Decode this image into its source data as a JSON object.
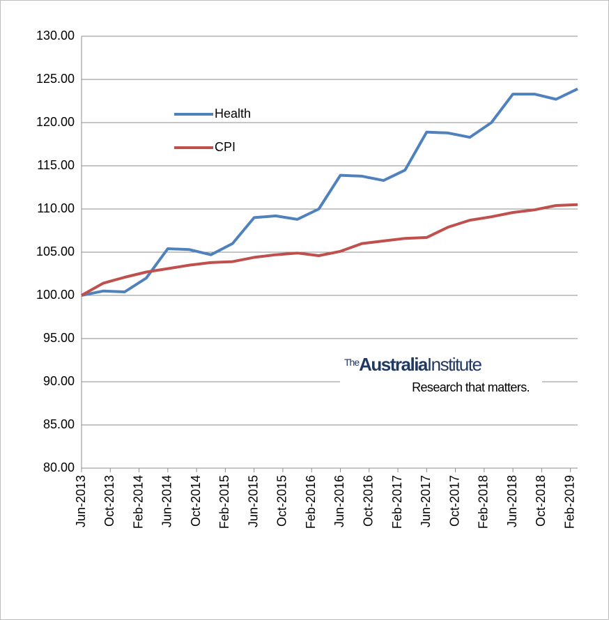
{
  "chart_data": {
    "type": "line",
    "x": [
      "2013-06",
      "2013-09",
      "2013-12",
      "2014-03",
      "2014-06",
      "2014-09",
      "2014-12",
      "2015-03",
      "2015-06",
      "2015-09",
      "2015-12",
      "2016-03",
      "2016-06",
      "2016-09",
      "2016-12",
      "2017-03",
      "2017-06",
      "2017-09",
      "2017-12",
      "2018-03",
      "2018-06",
      "2018-09",
      "2018-12",
      "2019-03"
    ],
    "series": [
      {
        "name": "Health",
        "color": "#4f81bd",
        "values": [
          100,
          100.5,
          100.4,
          102,
          105.4,
          105.3,
          104.7,
          106,
          109,
          109.2,
          108.8,
          110,
          113.9,
          113.8,
          113.3,
          114.5,
          118.9,
          118.8,
          118.3,
          120,
          123.3,
          123.3,
          122.7,
          123.9
        ]
      },
      {
        "name": "CPI",
        "color": "#c0504d",
        "values": [
          100,
          101.4,
          102.1,
          102.7,
          103.1,
          103.5,
          103.8,
          103.9,
          104.4,
          104.7,
          104.9,
          104.6,
          105.1,
          106,
          106.3,
          106.6,
          106.7,
          107.9,
          108.7,
          109.1,
          109.6,
          109.9,
          110.4,
          110.5
        ]
      }
    ],
    "xlim": [
      "2013-06",
      "2019-03"
    ],
    "xticks": [
      {
        "value": "2013-06",
        "label": "Jun-2013"
      },
      {
        "value": "2013-10",
        "label": "Oct-2013"
      },
      {
        "value": "2014-02",
        "label": "Feb-2014"
      },
      {
        "value": "2014-06",
        "label": "Jun-2014"
      },
      {
        "value": "2014-10",
        "label": "Oct-2014"
      },
      {
        "value": "2015-02",
        "label": "Feb-2015"
      },
      {
        "value": "2015-06",
        "label": "Jun-2015"
      },
      {
        "value": "2015-10",
        "label": "Oct-2015"
      },
      {
        "value": "2016-02",
        "label": "Feb-2016"
      },
      {
        "value": "2016-06",
        "label": "Jun-2016"
      },
      {
        "value": "2016-10",
        "label": "Oct-2016"
      },
      {
        "value": "2017-02",
        "label": "Feb-2017"
      },
      {
        "value": "2017-06",
        "label": "Jun-2017"
      },
      {
        "value": "2017-10",
        "label": "Oct-2017"
      },
      {
        "value": "2018-02",
        "label": "Feb-2018"
      },
      {
        "value": "2018-06",
        "label": "Jun-2018"
      },
      {
        "value": "2018-10",
        "label": "Oct-2018"
      },
      {
        "value": "2019-02",
        "label": "Feb-2019"
      }
    ],
    "ylim": [
      80,
      130
    ],
    "yticks": [
      {
        "value": 80,
        "label": "80.00"
      },
      {
        "value": 85,
        "label": "85.00"
      },
      {
        "value": 90,
        "label": "90.00"
      },
      {
        "value": 95,
        "label": "95.00"
      },
      {
        "value": 100,
        "label": "100.00"
      },
      {
        "value": 105,
        "label": "105.00"
      },
      {
        "value": 110,
        "label": "110.00"
      },
      {
        "value": 115,
        "label": "115.00"
      },
      {
        "value": 120,
        "label": "120.00"
      },
      {
        "value": 125,
        "label": "125.00"
      },
      {
        "value": 130,
        "label": "130.00"
      }
    ],
    "grid": true,
    "logo": {
      "prefix": "The",
      "name": "Australia",
      "name2": "Institute",
      "tagline": "Research that matters."
    }
  }
}
